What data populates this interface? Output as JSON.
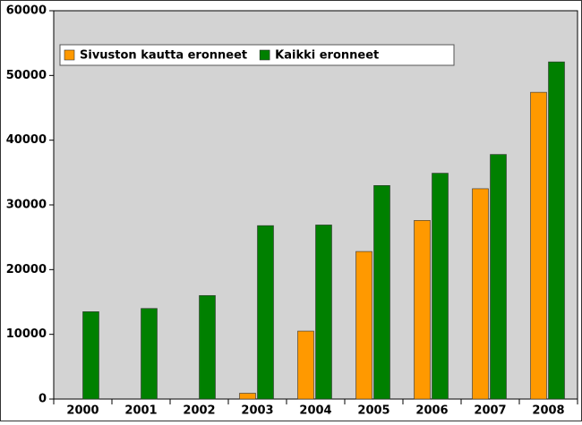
{
  "chart_data": {
    "type": "bar",
    "categories": [
      "2000",
      "2001",
      "2002",
      "2003",
      "2004",
      "2005",
      "2006",
      "2007",
      "2008"
    ],
    "series": [
      {
        "name": "Sivuston kautta eronneet",
        "color": "#ff9900",
        "values": [
          null,
          null,
          null,
          900,
          10500,
          22800,
          27600,
          32500,
          47400
        ]
      },
      {
        "name": "Kaikki eronneet",
        "color": "#008000",
        "values": [
          13500,
          14000,
          16000,
          26800,
          26900,
          33000,
          34900,
          37800,
          52100
        ]
      }
    ],
    "ylim": [
      0,
      60000
    ],
    "yticks": [
      0,
      10000,
      20000,
      30000,
      40000,
      50000,
      60000
    ],
    "legend": "upper left"
  }
}
